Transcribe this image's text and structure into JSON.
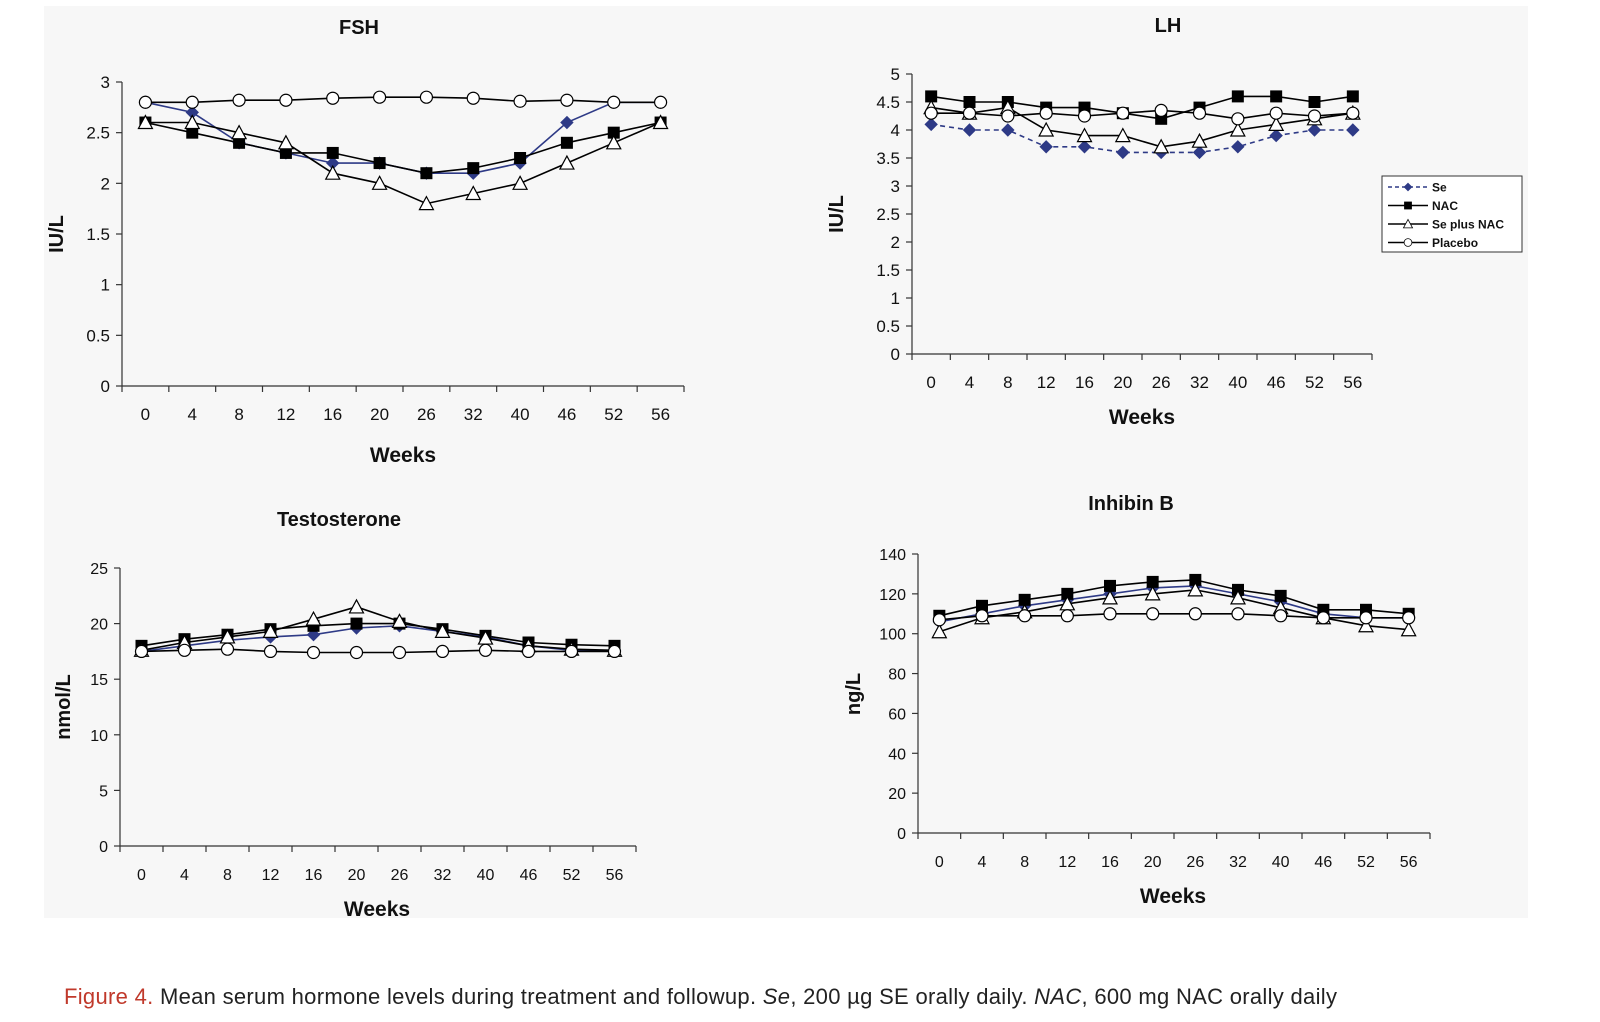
{
  "chart_data": [
    {
      "type": "line",
      "title": "FSH",
      "xlabel": "Weeks",
      "ylabel": "IU/L",
      "categories": [
        "0",
        "4",
        "8",
        "12",
        "16",
        "20",
        "26",
        "32",
        "40",
        "46",
        "52",
        "56"
      ],
      "ylim": [
        0,
        3
      ],
      "yticks": [
        "0",
        "0.5",
        "1",
        "1.5",
        "2",
        "2.5",
        "3"
      ],
      "series": [
        {
          "name": "Se",
          "values": [
            2.8,
            2.7,
            2.4,
            2.3,
            2.2,
            2.2,
            2.1,
            2.1,
            2.2,
            2.6,
            2.8,
            2.8
          ]
        },
        {
          "name": "NAC",
          "values": [
            2.6,
            2.5,
            2.4,
            2.3,
            2.3,
            2.2,
            2.1,
            2.15,
            2.25,
            2.4,
            2.5,
            2.6
          ]
        },
        {
          "name": "Se plus NAC",
          "values": [
            2.6,
            2.6,
            2.5,
            2.4,
            2.1,
            2.0,
            1.8,
            1.9,
            2.0,
            2.2,
            2.4,
            2.6
          ]
        },
        {
          "name": "Placebo",
          "values": [
            2.8,
            2.8,
            2.82,
            2.82,
            2.84,
            2.85,
            2.85,
            2.84,
            2.81,
            2.82,
            2.8,
            2.8
          ]
        }
      ]
    },
    {
      "type": "line",
      "title": "LH",
      "xlabel": "Weeks",
      "ylabel": "IU/L",
      "categories": [
        "0",
        "4",
        "8",
        "12",
        "16",
        "20",
        "26",
        "32",
        "40",
        "46",
        "52",
        "56"
      ],
      "ylim": [
        0,
        5
      ],
      "yticks": [
        "0",
        "0.5",
        "1",
        "1.5",
        "2",
        "2.5",
        "3",
        "3.5",
        "4",
        "4.5",
        "5"
      ],
      "legend": "right",
      "series": [
        {
          "name": "Se",
          "values": [
            4.1,
            4.0,
            4.0,
            3.7,
            3.7,
            3.6,
            3.6,
            3.6,
            3.7,
            3.9,
            4.0,
            4.0
          ]
        },
        {
          "name": "NAC",
          "values": [
            4.6,
            4.5,
            4.5,
            4.4,
            4.4,
            4.3,
            4.2,
            4.4,
            4.6,
            4.6,
            4.5,
            4.6
          ]
        },
        {
          "name": "Se plus NAC",
          "values": [
            4.4,
            4.3,
            4.4,
            4.0,
            3.9,
            3.9,
            3.7,
            3.8,
            4.0,
            4.1,
            4.2,
            4.3
          ]
        },
        {
          "name": "Placebo",
          "values": [
            4.3,
            4.3,
            4.25,
            4.3,
            4.25,
            4.3,
            4.35,
            4.3,
            4.2,
            4.3,
            4.25,
            4.3
          ]
        }
      ]
    },
    {
      "type": "line",
      "title": "Testosterone",
      "xlabel": "Weeks",
      "ylabel": "nmol/L",
      "categories": [
        "0",
        "4",
        "8",
        "12",
        "16",
        "20",
        "26",
        "32",
        "40",
        "46",
        "52",
        "56"
      ],
      "ylim": [
        0,
        25
      ],
      "yticks": [
        "0",
        "5",
        "10",
        "15",
        "20",
        "25"
      ],
      "series": [
        {
          "name": "Se",
          "values": [
            17.5,
            18.0,
            18.5,
            18.8,
            19.0,
            19.6,
            19.8,
            19.3,
            18.8,
            18.0,
            17.6,
            17.6
          ]
        },
        {
          "name": "NAC",
          "values": [
            18.0,
            18.6,
            19.0,
            19.5,
            19.8,
            20.0,
            20.0,
            19.5,
            18.9,
            18.3,
            18.1,
            18.0
          ]
        },
        {
          "name": "Se plus NAC",
          "values": [
            17.6,
            18.3,
            18.8,
            19.3,
            20.4,
            21.5,
            20.2,
            19.3,
            18.7,
            18.0,
            17.7,
            17.6
          ]
        },
        {
          "name": "Placebo",
          "values": [
            17.5,
            17.6,
            17.7,
            17.5,
            17.4,
            17.4,
            17.4,
            17.5,
            17.6,
            17.5,
            17.5,
            17.5
          ]
        }
      ]
    },
    {
      "type": "line",
      "title": "Inhibin B",
      "xlabel": "Weeks",
      "ylabel": "ng/L",
      "categories": [
        "0",
        "4",
        "8",
        "12",
        "16",
        "20",
        "26",
        "32",
        "40",
        "46",
        "52",
        "56"
      ],
      "ylim": [
        0,
        140
      ],
      "yticks": [
        "0",
        "20",
        "40",
        "60",
        "80",
        "100",
        "120",
        "140"
      ],
      "series": [
        {
          "name": "Se",
          "values": [
            106,
            110,
            114,
            117,
            120,
            123,
            124,
            120,
            116,
            110,
            108,
            108
          ]
        },
        {
          "name": "NAC",
          "values": [
            109,
            114,
            117,
            120,
            124,
            126,
            127,
            122,
            119,
            112,
            112,
            110
          ]
        },
        {
          "name": "Se plus NAC",
          "values": [
            101,
            108,
            111,
            115,
            118,
            120,
            122,
            118,
            113,
            108,
            104,
            102
          ]
        },
        {
          "name": "Placebo",
          "values": [
            107,
            109,
            109,
            109,
            110,
            110,
            110,
            110,
            109,
            108,
            108,
            108
          ]
        }
      ]
    }
  ],
  "series_styles": {
    "Se": {
      "color": "#2e3a86",
      "marker": "diamond",
      "dash": "5,4"
    },
    "NAC": {
      "color": "#000000",
      "marker": "square",
      "dash": ""
    },
    "Se plus NAC": {
      "color": "#000000",
      "marker": "triangle",
      "dash": ""
    },
    "Placebo": {
      "color": "#000000",
      "marker": "circle",
      "dash": ""
    }
  },
  "caption": {
    "label": "Figure 4.",
    "text1": " Mean serum hormone levels during treatment and followup. ",
    "term1": "Se",
    "text2": ", 200 µg SE orally daily. ",
    "term2": "NAC",
    "text3": ", 600 mg NAC orally daily"
  }
}
